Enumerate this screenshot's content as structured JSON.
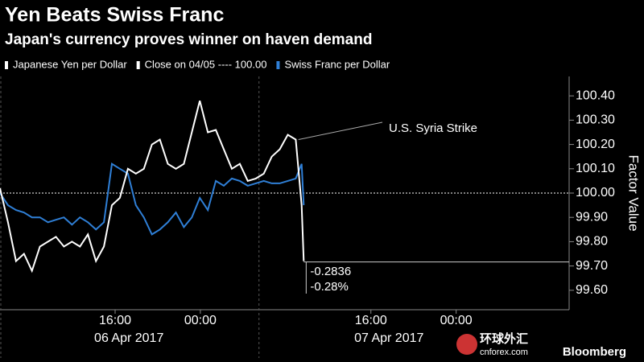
{
  "chart_data": {
    "type": "line",
    "title": "Yen Beats Swiss Franc",
    "subtitle": "Japan's currency proves winner on haven demand",
    "y_axis_label": "Factor Value",
    "x": [
      5.2,
      5.95,
      6.7,
      7.45,
      8.2,
      8.95,
      9.7,
      10.45,
      11.2,
      11.95,
      12.7,
      13.45,
      14.2,
      14.95,
      15.7,
      16.45,
      17.2,
      17.95,
      18.7,
      19.45,
      20.2,
      20.95,
      21.7,
      22.45,
      23.2,
      23.95,
      24.7,
      25.45,
      26.2,
      26.95,
      27.7,
      28.45,
      29.2,
      29.95,
      30.7,
      31.45,
      32.2,
      32.95,
      33.5,
      33.7
    ],
    "series": [
      {
        "name": "Japanese Yen per Dollar",
        "color": "#ffffff",
        "values": [
          100.02,
          99.88,
          99.72,
          99.75,
          99.68,
          99.78,
          99.8,
          99.82,
          99.78,
          99.8,
          99.78,
          99.83,
          99.72,
          99.78,
          99.95,
          99.98,
          100.1,
          100.08,
          100.1,
          100.2,
          100.22,
          100.12,
          100.1,
          100.12,
          100.25,
          100.38,
          100.25,
          100.26,
          100.18,
          100.1,
          100.12,
          100.05,
          100.06,
          100.08,
          100.15,
          100.18,
          100.24,
          100.22,
          99.95,
          99.72
        ]
      },
      {
        "name": "Swiss Franc per Dollar",
        "color": "#2f7fd6",
        "values": [
          100.0,
          99.95,
          99.93,
          99.92,
          99.9,
          99.9,
          99.88,
          99.89,
          99.9,
          99.87,
          99.9,
          99.88,
          99.85,
          99.88,
          100.12,
          100.1,
          100.08,
          99.95,
          99.9,
          99.83,
          99.85,
          99.88,
          99.92,
          99.86,
          99.9,
          99.98,
          99.93,
          100.05,
          100.03,
          100.06,
          100.05,
          100.03,
          100.04,
          100.05,
          100.04,
          100.04,
          100.05,
          100.06,
          100.12,
          99.95
        ]
      }
    ],
    "reference_line": {
      "name": "Close on 04/05 ---- 100.00",
      "value": 100
    },
    "xlim": [
      5.2,
      58.6
    ],
    "xticks": [
      {
        "value": 16,
        "label": "16:00"
      },
      {
        "value": 24,
        "label": "00:00"
      },
      {
        "value": 40,
        "label": "16:00"
      },
      {
        "value": 48,
        "label": "00:00"
      }
    ],
    "date_labels": [
      {
        "value": 17.3,
        "label": "06 Apr 2017"
      },
      {
        "value": 41.7,
        "label": "07 Apr 2017"
      }
    ],
    "separators": [
      29.5
    ],
    "ylim": [
      99.52,
      100.48
    ],
    "yticks": [
      {
        "value": 99.6,
        "label": "99.60"
      },
      {
        "value": 99.7,
        "label": "99.70"
      },
      {
        "value": 99.8,
        "label": "99.80"
      },
      {
        "value": 99.9,
        "label": "99.90"
      },
      {
        "value": 100,
        "label": "100.00"
      },
      {
        "value": 100.1,
        "label": "100.10"
      },
      {
        "value": 100.2,
        "label": "100.20"
      },
      {
        "value": 100.3,
        "label": "100.30"
      },
      {
        "value": 100.4,
        "label": "100.40"
      }
    ],
    "annotations": [
      {
        "text": "U.S. Syria Strike",
        "x": 33.2,
        "y": 100.22
      },
      {
        "text": "-0.2836",
        "x": 33.7,
        "y": 99.7164
      },
      {
        "text": "-0.28%"
      }
    ],
    "source": "Bloomberg",
    "watermark": [
      "环球外汇",
      "cnforex.com"
    ]
  }
}
